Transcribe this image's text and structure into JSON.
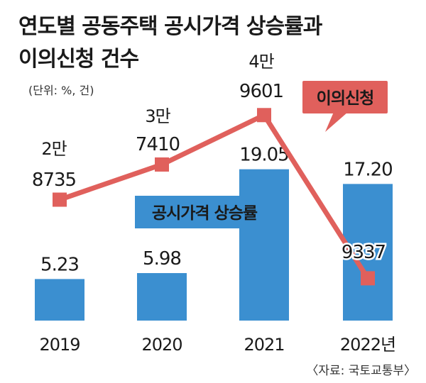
{
  "title_line1": "연도별 공동주택 공시가격 상승률과",
  "title_line2": "이의신청 건수",
  "unit": "(단위: %, 건)",
  "source": "〈자료: 국토교통부〉",
  "colors": {
    "bar": "#3b8fd0",
    "line": "#e0605c",
    "text": "#1a1a1a"
  },
  "chart_data": {
    "type": "bar",
    "categories": [
      "2019",
      "2020",
      "2021",
      "2022년"
    ],
    "series": [
      {
        "name": "공시가격 상승률",
        "type": "bar",
        "values": [
          5.23,
          5.98,
          19.05,
          17.2
        ],
        "labels": [
          "5.23",
          "5.98",
          "19.05",
          "17.20"
        ]
      },
      {
        "name": "이의신청",
        "type": "line",
        "values": [
          28735,
          37410,
          49601,
          9337
        ],
        "labels": [
          [
            "2만",
            "8735"
          ],
          [
            "3만",
            "7410"
          ],
          [
            "4만",
            "9601"
          ],
          [
            "9337"
          ]
        ]
      }
    ],
    "legend": {
      "bar_label": "공시가격 상승률",
      "line_label": "이의신청"
    }
  }
}
